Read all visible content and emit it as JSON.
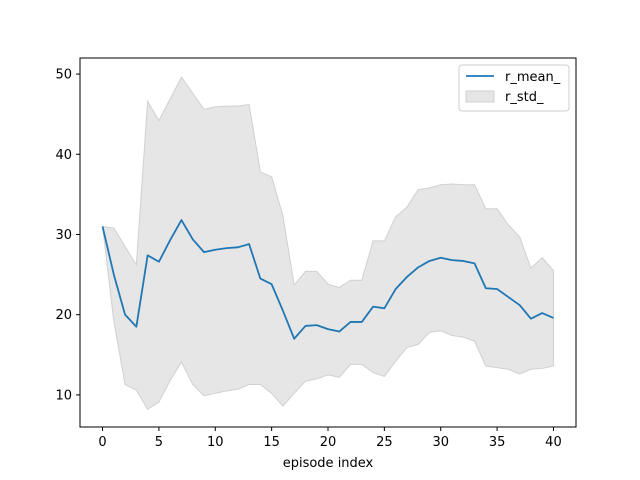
{
  "chart_data": {
    "type": "line",
    "title": "",
    "xlabel": "episode index",
    "ylabel": "",
    "xlim": [
      -2,
      42
    ],
    "ylim": [
      6,
      52
    ],
    "xticks": [
      0,
      5,
      10,
      15,
      20,
      25,
      30,
      35,
      40
    ],
    "yticks": [
      10,
      20,
      30,
      40,
      50
    ],
    "grid": false,
    "legend_position": "upper right",
    "x": [
      0,
      1,
      2,
      3,
      4,
      5,
      6,
      7,
      8,
      9,
      10,
      11,
      12,
      13,
      14,
      15,
      16,
      17,
      18,
      19,
      20,
      21,
      22,
      23,
      24,
      25,
      26,
      27,
      28,
      29,
      30,
      31,
      32,
      33,
      34,
      35,
      36,
      37,
      38,
      39,
      40
    ],
    "series": [
      {
        "name": "r_mean_",
        "kind": "line",
        "color": "#1f77b4",
        "values": [
          31.0,
          25.0,
          20.0,
          18.5,
          27.4,
          26.6,
          29.3,
          31.8,
          29.4,
          27.8,
          28.1,
          28.3,
          28.4,
          28.8,
          24.5,
          23.8,
          20.5,
          17.0,
          18.6,
          18.7,
          18.2,
          17.9,
          19.1,
          19.1,
          21.0,
          20.8,
          23.2,
          24.7,
          25.9,
          26.7,
          27.1,
          26.8,
          26.7,
          26.4,
          23.3,
          23.2,
          22.2,
          21.2,
          19.5,
          20.2,
          19.6
        ]
      },
      {
        "name": "r_std_",
        "kind": "band",
        "color": "#e6e6e6",
        "edge_color": "#d0d0d0",
        "upper": [
          31.0,
          30.8,
          28.5,
          26.2,
          46.6,
          44.2,
          46.9,
          49.6,
          47.6,
          45.6,
          45.9,
          46.0,
          46.0,
          46.2,
          37.8,
          37.2,
          32.3,
          23.7,
          25.4,
          25.4,
          23.8,
          23.4,
          24.3,
          24.3,
          29.2,
          29.2,
          32.2,
          33.4,
          35.6,
          35.8,
          36.2,
          36.3,
          36.2,
          36.2,
          33.2,
          33.2,
          31.2,
          29.7,
          25.8,
          27.1,
          25.5
        ],
        "lower": [
          31.0,
          19.2,
          11.3,
          10.6,
          8.2,
          9.1,
          11.8,
          14.1,
          11.3,
          9.9,
          10.2,
          10.5,
          10.7,
          11.3,
          11.3,
          10.2,
          8.6,
          10.2,
          11.7,
          12.0,
          12.5,
          12.2,
          13.8,
          13.8,
          12.8,
          12.3,
          14.2,
          15.9,
          16.3,
          17.8,
          18.0,
          17.4,
          17.2,
          16.7,
          13.6,
          13.4,
          13.2,
          12.6,
          13.2,
          13.3,
          13.6
        ]
      }
    ]
  }
}
